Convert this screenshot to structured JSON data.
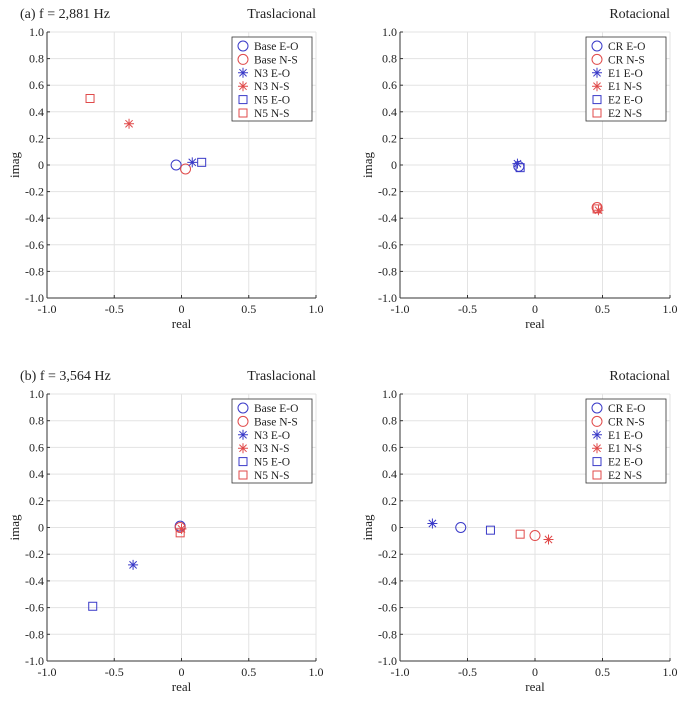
{
  "colors": {
    "blue": "#3a3ac8",
    "red": "#e04a4a",
    "grid": "#e3e3e3"
  },
  "chart_data": [
    {
      "type": "scatter",
      "title": "(a) f = 2,881 Hz",
      "subtitle": "Traslacional",
      "xlabel": "real",
      "ylabel": "imag",
      "xlim": [
        -1,
        1
      ],
      "ylim": [
        -1,
        1
      ],
      "xticks": [
        "-1.0",
        "-0.5",
        "0",
        "0.5",
        "1.0"
      ],
      "yticks": [
        "1.0",
        "0.8",
        "0.6",
        "0.4",
        "0.2",
        "0",
        "-0.2",
        "-0.4",
        "-0.6",
        "-0.8",
        "-1.0"
      ],
      "grid": true,
      "legend": "top-right",
      "series": [
        {
          "name": "Base E-O",
          "marker": "circle",
          "color": "blue",
          "x": -0.04,
          "y": 0.0
        },
        {
          "name": "Base N-S",
          "marker": "circle",
          "color": "red",
          "x": 0.03,
          "y": -0.03
        },
        {
          "name": "N3 E-O",
          "marker": "star",
          "color": "blue",
          "x": 0.08,
          "y": 0.02
        },
        {
          "name": "N3 N-S",
          "marker": "star",
          "color": "red",
          "x": -0.39,
          "y": 0.31
        },
        {
          "name": "N5 E-O",
          "marker": "square",
          "color": "blue",
          "x": 0.15,
          "y": 0.02
        },
        {
          "name": "N5 N-S",
          "marker": "square",
          "color": "red",
          "x": -0.68,
          "y": 0.5
        }
      ]
    },
    {
      "type": "scatter",
      "title": "",
      "subtitle": "Rotacional",
      "xlabel": "real",
      "ylabel": "imag",
      "xlim": [
        -1,
        1
      ],
      "ylim": [
        -1,
        1
      ],
      "xticks": [
        "-1.0",
        "-0.5",
        "0",
        "0.5",
        "1.0"
      ],
      "yticks": [
        "1.0",
        "0.8",
        "0.6",
        "0.4",
        "0.2",
        "0",
        "-0.2",
        "-0.4",
        "-0.6",
        "-0.8",
        "-1.0"
      ],
      "grid": true,
      "legend": "top-right",
      "series": [
        {
          "name": "CR E-O",
          "marker": "circle",
          "color": "blue",
          "x": -0.12,
          "y": -0.01
        },
        {
          "name": "CR N-S",
          "marker": "circle",
          "color": "red",
          "x": 0.46,
          "y": -0.32
        },
        {
          "name": "E1 E-O",
          "marker": "star",
          "color": "blue",
          "x": -0.13,
          "y": 0.01
        },
        {
          "name": "E1 N-S",
          "marker": "star",
          "color": "red",
          "x": 0.47,
          "y": -0.34
        },
        {
          "name": "E2 E-O",
          "marker": "square",
          "color": "blue",
          "x": -0.11,
          "y": -0.02
        },
        {
          "name": "E2 N-S",
          "marker": "square",
          "color": "red",
          "x": 0.46,
          "y": -0.33
        }
      ]
    },
    {
      "type": "scatter",
      "title": "(b) f = 3,564 Hz",
      "subtitle": "Traslacional",
      "xlabel": "real",
      "ylabel": "imag",
      "xlim": [
        -1,
        1
      ],
      "ylim": [
        -1,
        1
      ],
      "xticks": [
        "-1.0",
        "-0.5",
        "0",
        "0.5",
        "1.0"
      ],
      "yticks": [
        "1.0",
        "0.8",
        "0.6",
        "0.4",
        "0.2",
        "0",
        "-0.2",
        "-0.4",
        "-0.6",
        "-0.8",
        "-1.0"
      ],
      "grid": true,
      "legend": "top-right",
      "series": [
        {
          "name": "Base E-O",
          "marker": "circle",
          "color": "blue",
          "x": -0.01,
          "y": 0.01
        },
        {
          "name": "Base N-S",
          "marker": "circle",
          "color": "red",
          "x": -0.01,
          "y": 0.0
        },
        {
          "name": "N3 E-O",
          "marker": "star",
          "color": "blue",
          "x": -0.36,
          "y": -0.28
        },
        {
          "name": "N3 N-S",
          "marker": "star",
          "color": "red",
          "x": 0.0,
          "y": -0.01
        },
        {
          "name": "N5 E-O",
          "marker": "square",
          "color": "blue",
          "x": -0.66,
          "y": -0.59
        },
        {
          "name": "N5 N-S",
          "marker": "square",
          "color": "red",
          "x": -0.01,
          "y": -0.04
        }
      ]
    },
    {
      "type": "scatter",
      "title": "",
      "subtitle": "Rotacional",
      "xlabel": "real",
      "ylabel": "imag",
      "xlim": [
        -1,
        1
      ],
      "ylim": [
        -1,
        1
      ],
      "xticks": [
        "-1.0",
        "-0.5",
        "0",
        "0.5",
        "1.0"
      ],
      "yticks": [
        "1.0",
        "0.8",
        "0.6",
        "0.4",
        "0.2",
        "0",
        "-0.2",
        "-0.4",
        "-0.6",
        "-0.8",
        "-1.0"
      ],
      "grid": true,
      "legend": "top-right",
      "series": [
        {
          "name": "CR E-O",
          "marker": "circle",
          "color": "blue",
          "x": -0.55,
          "y": 0.0
        },
        {
          "name": "CR N-S",
          "marker": "circle",
          "color": "red",
          "x": 0.0,
          "y": -0.06
        },
        {
          "name": "E1 E-O",
          "marker": "star",
          "color": "blue",
          "x": -0.76,
          "y": 0.03
        },
        {
          "name": "E1 N-S",
          "marker": "star",
          "color": "red",
          "x": 0.1,
          "y": -0.09
        },
        {
          "name": "E2 E-O",
          "marker": "square",
          "color": "blue",
          "x": -0.33,
          "y": -0.02
        },
        {
          "name": "E2 N-S",
          "marker": "square",
          "color": "red",
          "x": -0.11,
          "y": -0.05
        }
      ]
    }
  ]
}
